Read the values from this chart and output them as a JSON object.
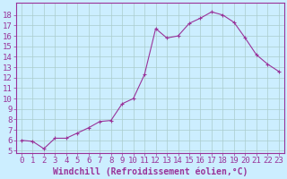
{
  "x": [
    0,
    1,
    2,
    3,
    4,
    5,
    6,
    7,
    8,
    9,
    10,
    11,
    12,
    13,
    14,
    15,
    16,
    17,
    18,
    19,
    20,
    21,
    22,
    23
  ],
  "y": [
    6.0,
    5.9,
    5.2,
    6.2,
    6.2,
    6.7,
    7.2,
    7.8,
    7.9,
    9.5,
    10.0,
    12.3,
    16.7,
    15.8,
    16.0,
    17.2,
    17.7,
    18.3,
    18.0,
    17.3,
    15.8,
    14.2,
    13.3,
    12.6
  ],
  "line_color": "#993399",
  "marker_color": "#993399",
  "bg_color": "#cceeff",
  "grid_color": "#aacccc",
  "xlabel": "Windchill (Refroidissement éolien,°C)",
  "xlim": [
    -0.5,
    23.5
  ],
  "ylim": [
    4.8,
    19.2
  ],
  "yticks": [
    5,
    6,
    7,
    8,
    9,
    10,
    11,
    12,
    13,
    14,
    15,
    16,
    17,
    18
  ],
  "xticks": [
    0,
    1,
    2,
    3,
    4,
    5,
    6,
    7,
    8,
    9,
    10,
    11,
    12,
    13,
    14,
    15,
    16,
    17,
    18,
    19,
    20,
    21,
    22,
    23
  ],
  "label_color": "#993399",
  "axis_color": "#993399",
  "font_size": 6.5,
  "xlabel_font_size": 7.0
}
